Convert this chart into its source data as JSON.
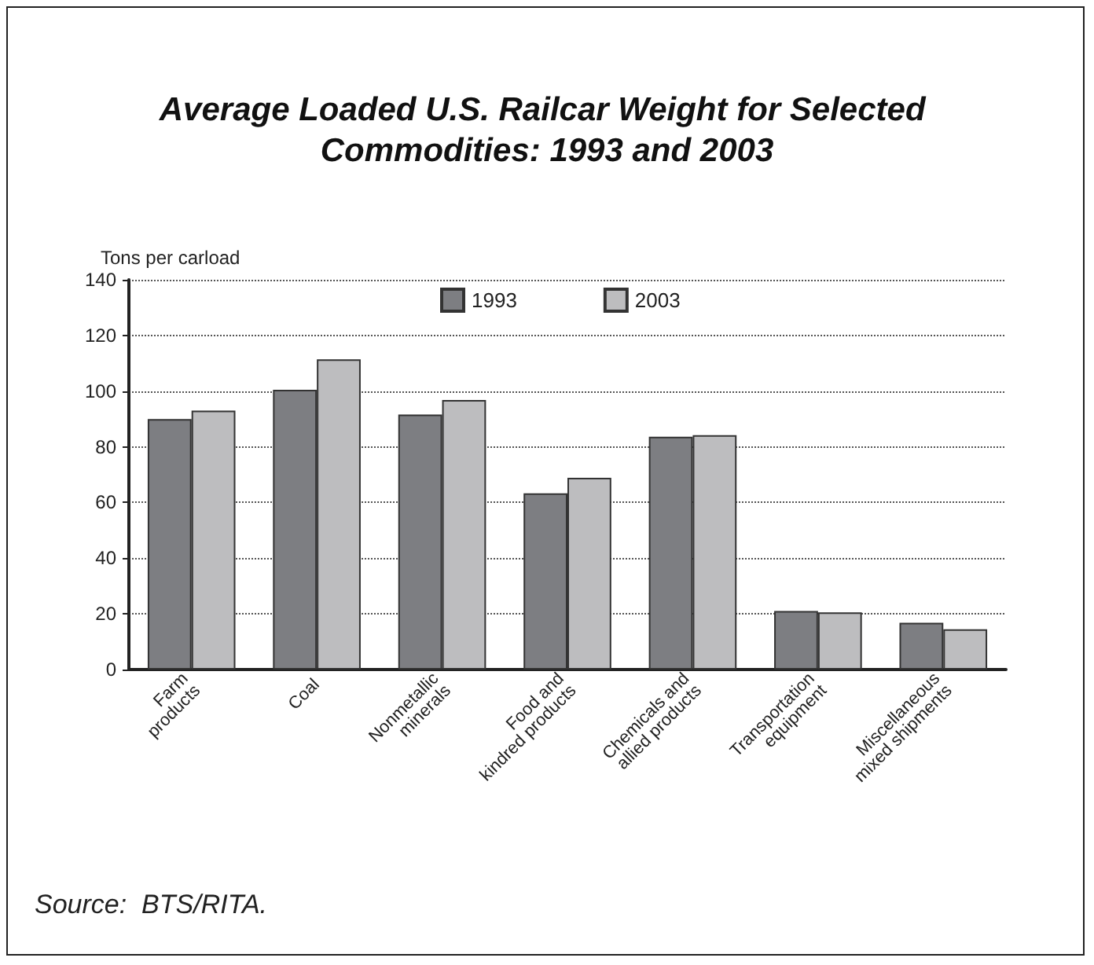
{
  "chart_data": {
    "type": "bar",
    "title": "Average Loaded U.S. Railcar Weight for Selected Commodities: 1993 and 2003",
    "ylabel": "Tons per carload",
    "categories": [
      "Farm\nproducts",
      "Coal",
      "Nonmetallic\nminerals",
      "Food and\nkindred products",
      "Chemicals and\nallied products",
      "Transportation\nequipment",
      "Miscellaneous\nmixed shipments"
    ],
    "series": [
      {
        "name": "1993",
        "color": "#7d7e82",
        "values": [
          90,
          100.5,
          91.6,
          63.3,
          83.6,
          21,
          16.8
        ]
      },
      {
        "name": "2003",
        "color": "#bdbdbf",
        "values": [
          93,
          111.4,
          96.8,
          68.9,
          84.2,
          20.5,
          14.5
        ]
      }
    ],
    "ylim": [
      0,
      140
    ],
    "yticks": [
      0,
      20,
      40,
      60,
      80,
      100,
      120,
      140
    ],
    "grid": "y",
    "legend": "top",
    "annotations": [
      "Source:  BTS/RITA."
    ]
  }
}
